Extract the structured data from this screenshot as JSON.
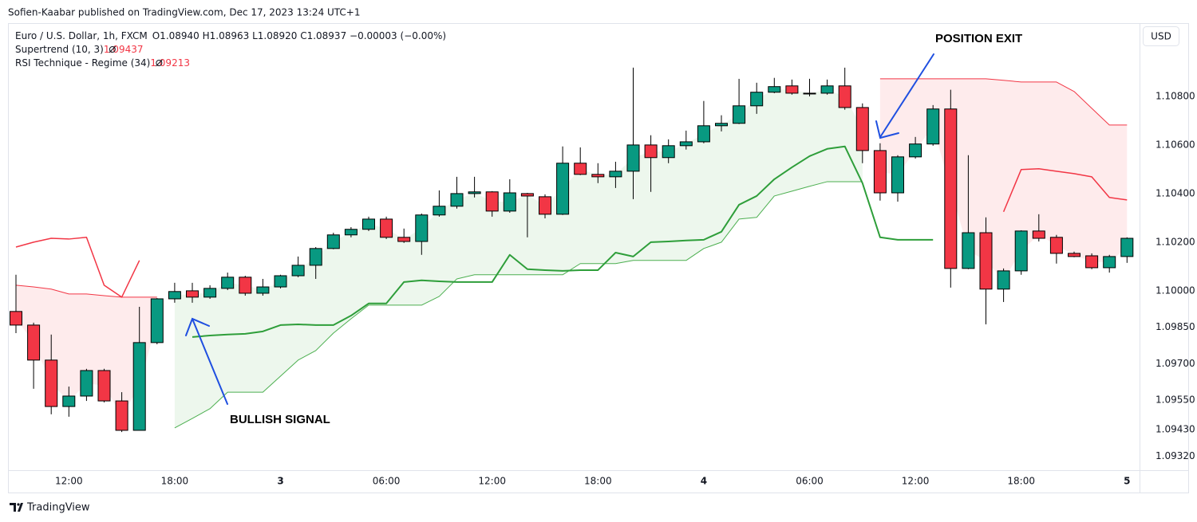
{
  "attribution": "Sofien-Kaabar published on TradingView.com, Dec 17, 2023 13:24 UTC+1",
  "brand": "TradingView",
  "currency": "USD",
  "chart_data": {
    "type": "candlestick",
    "title": "Euro / U.S. Dollar, 1h, FXCM",
    "subtitle": "O1.08940 H1.08963 L1.08920 C1.08937 −0.00003 (−0.00%)",
    "categories": [
      null,
      null,
      null,
      "12:00",
      null,
      null,
      null,
      null,
      null,
      "18:00",
      null,
      null,
      null,
      null,
      null,
      "3",
      null,
      null,
      null,
      null,
      null,
      "06:00",
      null,
      null,
      null,
      null,
      null,
      "12:00",
      null,
      null,
      null,
      null,
      null,
      "18:00",
      null,
      null,
      null,
      null,
      null,
      "4",
      null,
      null,
      null,
      null,
      null,
      "06:00",
      null,
      null,
      null,
      null,
      null,
      "12:00",
      null,
      null,
      null,
      null,
      null,
      "18:00",
      null,
      null,
      null,
      null,
      null,
      "5"
    ],
    "open": [
      1.09915,
      1.09859,
      1.09715,
      1.09524,
      1.09567,
      1.09672,
      1.09547,
      1.09426,
      1.09787,
      1.09967,
      1.1,
      1.09974,
      1.1001,
      1.10056,
      1.0999,
      1.10016,
      1.10062,
      1.10105,
      1.10174,
      1.1023,
      1.10253,
      1.10295,
      1.1022,
      1.10203,
      1.10312,
      1.10348,
      1.104,
      1.10407,
      1.10328,
      1.104,
      1.10387,
      1.10315,
      1.10525,
      1.10479,
      1.10469,
      1.10492,
      1.106,
      1.10548,
      1.10597,
      1.10613,
      1.10679,
      1.10689,
      1.10761,
      1.10817,
      1.10843,
      1.1081,
      1.10813,
      1.10843,
      1.10754,
      1.10577,
      1.10403,
      1.10551,
      1.10604,
      1.10748,
      1.10092,
      1.10239,
      1.10007,
      1.10082,
      1.10246,
      1.1022,
      1.10154,
      1.10144,
      1.10095,
      1.10141
    ],
    "high": [
      1.10066,
      1.09869,
      1.0982,
      1.09606,
      1.09679,
      1.09679,
      1.09583,
      1.09934,
      1.0997,
      1.10033,
      1.10033,
      1.10023,
      1.10075,
      1.10062,
      1.10049,
      1.10066,
      1.10141,
      1.1018,
      1.10239,
      1.10262,
      1.10305,
      1.10305,
      1.10256,
      1.10318,
      1.10413,
      1.10469,
      1.10469,
      1.1041,
      1.10459,
      1.10403,
      1.10397,
      1.10594,
      1.1059,
      1.10525,
      1.10531,
      1.10918,
      1.1064,
      1.10623,
      1.10659,
      1.10781,
      1.10722,
      1.10872,
      1.10856,
      1.10876,
      1.10869,
      1.10872,
      1.10869,
      1.10918,
      1.10771,
      1.10607,
      1.10558,
      1.10633,
      1.10764,
      1.10827,
      1.10558,
      1.10302,
      1.10092,
      1.10249,
      1.10315,
      1.1023,
      1.10161,
      1.10154,
      1.10148,
      1.1022
    ],
    "low": [
      1.09826,
      1.09597,
      1.09492,
      1.09482,
      1.09547,
      1.09541,
      1.09419,
      1.09426,
      1.0978,
      1.09951,
      1.09951,
      1.09967,
      1.10003,
      1.0998,
      1.0998,
      1.1001,
      1.10056,
      1.10049,
      1.10171,
      1.1022,
      1.10246,
      1.10213,
      1.10197,
      1.10148,
      1.10305,
      1.10338,
      1.10384,
      1.10305,
      1.10321,
      1.1022,
      1.10298,
      1.10312,
      1.10476,
      1.10443,
      1.10423,
      1.10377,
      1.10407,
      1.10525,
      1.10581,
      1.10607,
      1.10656,
      1.10686,
      1.10728,
      1.10813,
      1.10807,
      1.108,
      1.10807,
      1.10745,
      1.10525,
      1.10371,
      1.10367,
      1.10544,
      1.10597,
      1.10013,
      1.10089,
      1.09862,
      1.09954,
      1.10066,
      1.10203,
      1.10112,
      1.10138,
      1.10089,
      1.10075,
      1.10115
    ],
    "close": [
      1.09859,
      1.09715,
      1.09524,
      1.09567,
      1.09672,
      1.09547,
      1.09426,
      1.09787,
      1.09967,
      1.09997,
      1.09974,
      1.1001,
      1.10056,
      1.0999,
      1.10016,
      1.10062,
      1.10105,
      1.10174,
      1.1023,
      1.10253,
      1.10295,
      1.1022,
      1.10203,
      1.10312,
      1.10348,
      1.104,
      1.10407,
      1.10328,
      1.10403,
      1.1039,
      1.10315,
      1.10525,
      1.10479,
      1.10469,
      1.10492,
      1.106,
      1.10548,
      1.10597,
      1.10613,
      1.10679,
      1.10689,
      1.10761,
      1.10817,
      1.1084,
      1.10813,
      1.10813,
      1.10843,
      1.10754,
      1.10577,
      1.10403,
      1.10551,
      1.10604,
      1.10748,
      1.10092,
      1.10239,
      1.10007,
      1.10082,
      1.10246,
      1.10216,
      1.10154,
      1.10141,
      1.10095,
      1.10141,
      1.10216
    ],
    "up_color": "#089981",
    "down_color": "#f23645",
    "indicators": [
      {
        "name": "Supertrend (10, 3)",
        "value": 1.09437,
        "value_color": "#f23645",
        "lines": [
          {
            "color": "#f23645",
            "line_width": 1,
            "fill_color": "rgba(242,54,69,0.1)",
            "values": [
              1.10023,
              1.10016,
              1.10007,
              1.09987,
              1.09987,
              1.0998,
              1.09974,
              1.09974,
              1.09974,
              null,
              null,
              null,
              null,
              null,
              null,
              null,
              null,
              null,
              null,
              null,
              null,
              null,
              null,
              null,
              null,
              null,
              null,
              null,
              null,
              null,
              null,
              null,
              null,
              null,
              null,
              null,
              null,
              null,
              null,
              null,
              null,
              null,
              null,
              null,
              null,
              null,
              null,
              null,
              null,
              1.10872,
              1.10872,
              1.10872,
              1.10872,
              1.10872,
              1.10872,
              1.10872,
              1.10866,
              1.10859,
              1.10859,
              1.10859,
              1.1082,
              1.10751,
              1.10682,
              1.10682
            ]
          },
          {
            "color": "#4caf50",
            "line_width": 1,
            "fill_color": "rgba(76,175,80,0.1)",
            "values": [
              null,
              null,
              null,
              null,
              null,
              null,
              null,
              null,
              null,
              1.09436,
              1.09475,
              1.09515,
              1.09583,
              1.09583,
              1.09583,
              1.09649,
              1.09715,
              1.09754,
              1.09826,
              1.09885,
              1.09941,
              1.09941,
              1.09941,
              1.09941,
              1.09977,
              1.10049,
              1.10066,
              1.10066,
              1.10066,
              1.10066,
              1.10066,
              1.10066,
              1.10112,
              1.10112,
              1.10112,
              1.10125,
              1.10125,
              1.10125,
              1.10125,
              1.10174,
              1.102,
              1.10295,
              1.10302,
              1.1039,
              1.1041,
              1.1043,
              1.10449,
              1.10449,
              1.10449,
              null,
              null,
              null,
              null,
              null,
              null,
              null,
              null,
              null,
              null,
              null,
              null,
              null,
              null,
              null
            ]
          }
        ]
      },
      {
        "name": "RSI Technique - Regime (34)",
        "value": 1.09213,
        "value_color": "#f23645",
        "lines": [
          {
            "color": "#f23645",
            "line_width": 1.5,
            "values": [
              1.1018,
              1.102,
              1.10216,
              1.10213,
              1.1022,
              1.10023,
              1.09974,
              1.10125,
              null,
              null,
              null,
              null,
              null,
              null,
              null,
              null,
              null,
              null,
              null,
              null,
              null,
              null,
              null,
              null,
              null,
              null,
              null,
              null,
              null,
              null,
              null,
              null,
              null,
              null,
              null,
              null,
              null,
              null,
              null,
              null,
              null,
              null,
              null,
              null,
              null,
              null,
              null,
              null,
              null,
              null,
              null,
              null,
              null,
              null,
              null,
              null,
              1.10325,
              1.10499,
              1.10502,
              1.10492,
              1.10482,
              1.10469,
              1.10384,
              1.10374
            ]
          },
          {
            "color": "#2e9e3a",
            "line_width": 2,
            "values": [
              null,
              null,
              null,
              null,
              null,
              null,
              null,
              null,
              null,
              null,
              1.0981,
              1.09816,
              1.0982,
              1.09823,
              1.09833,
              1.09859,
              1.09862,
              1.09859,
              1.09859,
              1.09898,
              1.09948,
              1.09948,
              1.10036,
              1.10043,
              1.10039,
              1.10036,
              1.10036,
              1.10036,
              1.10148,
              1.10089,
              1.10085,
              1.10082,
              1.10085,
              1.10085,
              1.10157,
              1.10141,
              1.102,
              1.10203,
              1.10207,
              1.1021,
              1.10243,
              1.10354,
              1.1039,
              1.10459,
              1.10508,
              1.10554,
              1.10584,
              1.10594,
              1.10443,
              1.1022,
              1.1021,
              1.1021,
              1.1021,
              null,
              null,
              null,
              null,
              null,
              null,
              null,
              null,
              null,
              null,
              null
            ]
          }
        ]
      }
    ],
    "ylim": [
      1.09262,
      1.11098
    ],
    "yticks": [
      {
        "value": 1.108,
        "label": "1.10800"
      },
      {
        "value": 1.106,
        "label": "1.10600"
      },
      {
        "value": 1.104,
        "label": "1.10400"
      },
      {
        "value": 1.102,
        "label": "1.10200"
      },
      {
        "value": 1.1,
        "label": "1.10000"
      },
      {
        "value": 1.0985,
        "label": "1.09850"
      },
      {
        "value": 1.097,
        "label": "1.09700"
      },
      {
        "value": 1.0955,
        "label": "1.09550"
      },
      {
        "value": 1.0943,
        "label": "1.09430"
      },
      {
        "value": 1.0932,
        "label": "1.09320"
      }
    ],
    "grid": false,
    "annotations": [
      {
        "text": "BULLISH SIGNAL"
      },
      {
        "text": "POSITION EXIT"
      }
    ]
  }
}
